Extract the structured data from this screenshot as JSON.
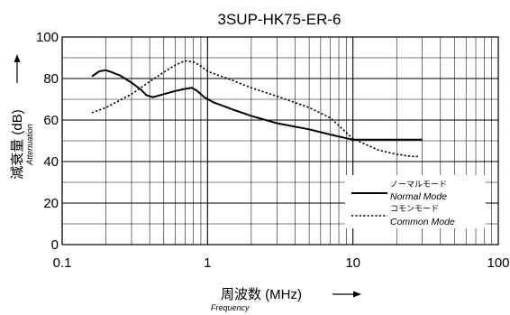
{
  "chart_data": {
    "type": "line",
    "title": "3SUP-HK75-ER-6",
    "xlabel": "周波数 (MHz)",
    "xlabel_sub": "Frequency",
    "ylabel": "減衰量 (dB)",
    "ylabel_sub": "Attenuation",
    "x_scale": "log",
    "xlim": [
      0.1,
      100
    ],
    "ylim": [
      0,
      100
    ],
    "x_ticks": [
      "0.1",
      "1",
      "10",
      "100"
    ],
    "y_ticks": [
      "0",
      "20",
      "40",
      "60",
      "80",
      "100"
    ],
    "grid": true,
    "legend_position": "bottom-right",
    "series": [
      {
        "name_jp": "ノーマルモード",
        "name": "Normal Mode",
        "style": "solid",
        "x": [
          0.16,
          0.18,
          0.2,
          0.22,
          0.25,
          0.3,
          0.35,
          0.38,
          0.42,
          0.5,
          0.6,
          0.7,
          0.78,
          0.85,
          0.95,
          1.1,
          1.5,
          2,
          3,
          5,
          7,
          10,
          15,
          20,
          30
        ],
        "y": [
          81,
          83.5,
          84,
          83,
          81.5,
          78,
          74.5,
          72,
          71,
          72.5,
          74,
          75,
          75.5,
          74,
          71,
          68.5,
          65,
          62,
          58.5,
          55.5,
          53,
          50.5,
          50.5,
          50.5,
          50.5
        ]
      },
      {
        "name_jp": "コモンモード",
        "name": "Common Mode",
        "style": "dashed",
        "x": [
          0.16,
          0.2,
          0.3,
          0.4,
          0.5,
          0.6,
          0.7,
          0.8,
          0.9,
          1,
          1.5,
          2,
          3,
          5,
          7,
          10,
          15,
          20,
          25,
          28
        ],
        "y": [
          63.5,
          66,
          72.5,
          78.5,
          83,
          86.5,
          88.5,
          88,
          86,
          83.5,
          79,
          75.5,
          71.5,
          66,
          61,
          51,
          45.5,
          43.5,
          42.5,
          42.5
        ]
      }
    ]
  }
}
